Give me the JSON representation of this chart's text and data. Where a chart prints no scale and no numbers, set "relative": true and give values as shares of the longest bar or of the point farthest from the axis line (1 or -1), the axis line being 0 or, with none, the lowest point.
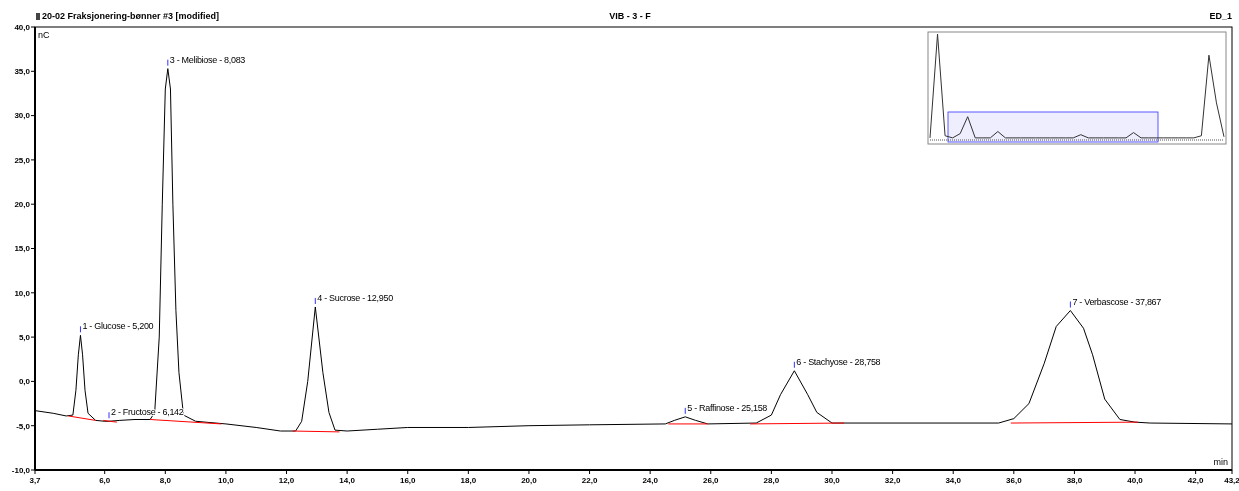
{
  "chart_data": [
    {
      "type": "line",
      "title": "20-02 Fraksjonering-bønner #3 [modified]",
      "subtitle": "VIB - 3 - F",
      "xlabel": "min",
      "ylabel": "nC",
      "annotations": [
        "ED_1",
        {
          "text": "1 - Glucose - 5,200",
          "x": 5.2,
          "y": 5.2
        },
        {
          "text": "2 - Fructose - 6,142",
          "x": 6.142,
          "y": -4.5
        },
        {
          "text": "3 - Melibiose - 8,083",
          "x": 8.083,
          "y": 35.3
        },
        {
          "text": "4 - Sucrose - 12,950",
          "x": 12.95,
          "y": 8.4
        },
        {
          "text": "5 - Raffinose - 25,158",
          "x": 25.158,
          "y": -4.0
        },
        {
          "text": "6 - Stachyose - 28,758",
          "x": 28.758,
          "y": 1.2
        },
        {
          "text": "7 - Verbascose - 37,867",
          "x": 37.867,
          "y": 8.0
        }
      ],
      "xlim": [
        3.7,
        43.2
      ],
      "ylim": [
        -10,
        40
      ],
      "xticks": [
        {
          "value": 3.7,
          "label": "3,7"
        },
        {
          "value": 6,
          "label": "6,0"
        },
        {
          "value": 8,
          "label": "8,0"
        },
        {
          "value": 10,
          "label": "10,0"
        },
        {
          "value": 12,
          "label": "12,0"
        },
        {
          "value": 14,
          "label": "14,0"
        },
        {
          "value": 16,
          "label": "16,0"
        },
        {
          "value": 18,
          "label": "18,0"
        },
        {
          "value": 20,
          "label": "20,0"
        },
        {
          "value": 22,
          "label": "22,0"
        },
        {
          "value": 24,
          "label": "24,0"
        },
        {
          "value": 26,
          "label": "26,0"
        },
        {
          "value": 28,
          "label": "28,0"
        },
        {
          "value": 30,
          "label": "30,0"
        },
        {
          "value": 32,
          "label": "32,0"
        },
        {
          "value": 34,
          "label": "34,0"
        },
        {
          "value": 36,
          "label": "36,0"
        },
        {
          "value": 38,
          "label": "38,0"
        },
        {
          "value": 40,
          "label": "40,0"
        },
        {
          "value": 42,
          "label": "42,0"
        },
        {
          "value": 43.2,
          "label": "43,2"
        }
      ],
      "yticks": [
        {
          "value": -10,
          "label": "-10,0"
        },
        {
          "value": -5,
          "label": "-5,0"
        },
        {
          "value": 0,
          "label": "0,0"
        },
        {
          "value": 5,
          "label": "5,0"
        },
        {
          "value": 10,
          "label": "10,0"
        },
        {
          "value": 15,
          "label": "15,0"
        },
        {
          "value": 20,
          "label": "20,0"
        },
        {
          "value": 25,
          "label": "25,0"
        },
        {
          "value": 30,
          "label": "30,0"
        },
        {
          "value": 35,
          "label": "35,0"
        },
        {
          "value": 40,
          "label": "40,0"
        }
      ],
      "series": [
        {
          "color": "#000000",
          "x": [
            3.7,
            4.3,
            4.73,
            4.95,
            5.05,
            5.13,
            5.2,
            5.27,
            5.35,
            5.45,
            5.7,
            6.0,
            6.142,
            6.5,
            7.0,
            7.5,
            7.65,
            7.8,
            7.9,
            8.0,
            8.083,
            8.17,
            8.25,
            8.35,
            8.45,
            8.6,
            9.0,
            10.0,
            11.0,
            11.8,
            12.3,
            12.5,
            12.7,
            12.95,
            13.2,
            13.4,
            13.6,
            14.0,
            15.0,
            16.0,
            18.0,
            20.0,
            22.0,
            24.5,
            24.8,
            25.158,
            25.5,
            25.9,
            27.5,
            28.0,
            28.3,
            28.758,
            29.2,
            29.5,
            30.0,
            35.5,
            36.0,
            36.5,
            37.0,
            37.4,
            37.867,
            38.3,
            38.6,
            39.0,
            39.5,
            40.0,
            40.5,
            43.2
          ],
          "values": [
            -3.3,
            -3.6,
            -3.9,
            -3.8,
            -1,
            3,
            5.2,
            3,
            -1,
            -3.6,
            -4.4,
            -4.5,
            -4.5,
            -4.4,
            -4.3,
            -4.3,
            -3.5,
            5,
            20,
            33,
            35.3,
            33,
            20,
            8,
            1,
            -3.8,
            -4.5,
            -4.8,
            -5.2,
            -5.6,
            -5.6,
            -4.5,
            0,
            8.4,
            1,
            -3.5,
            -5.5,
            -5.6,
            -5.4,
            -5.2,
            -5.2,
            -5.0,
            -4.9,
            -4.8,
            -4.4,
            -4.0,
            -4.4,
            -4.8,
            -4.7,
            -3.8,
            -1.5,
            1.2,
            -1.5,
            -3.5,
            -4.7,
            -4.7,
            -4.2,
            -2.5,
            2,
            6.2,
            8.0,
            6,
            3,
            -2,
            -4.3,
            -4.6,
            -4.7,
            -4.8
          ]
        },
        {
          "color": "#ff0000",
          "x": [
            4.8,
            5.7
          ],
          "values": [
            -3.9,
            -4.4
          ]
        },
        {
          "color": "#ff0000",
          "x": [
            5.95,
            6.4
          ],
          "values": [
            -4.4,
            -4.6
          ]
        },
        {
          "color": "#ff0000",
          "x": [
            7.5,
            9.85
          ],
          "values": [
            -4.3,
            -4.8
          ]
        },
        {
          "color": "#ff0000",
          "x": [
            12.2,
            13.75
          ],
          "values": [
            -5.6,
            -5.7
          ]
        },
        {
          "color": "#ff0000",
          "x": [
            24.6,
            25.9
          ],
          "values": [
            -4.8,
            -4.8
          ]
        },
        {
          "color": "#ff0000",
          "x": [
            27.3,
            30.4
          ],
          "values": [
            -4.8,
            -4.7
          ]
        },
        {
          "color": "#ff0000",
          "x": [
            35.9,
            40.1
          ],
          "values": [
            -4.7,
            -4.6
          ]
        }
      ]
    },
    {
      "type": "line",
      "relative": true,
      "categories": [
        null,
        null,
        null,
        null,
        null,
        null,
        null,
        null,
        null,
        null,
        null,
        null,
        null,
        null,
        null,
        null,
        null,
        null,
        null,
        null,
        null,
        null,
        null,
        null,
        null,
        null,
        null,
        null,
        null,
        null,
        null,
        null,
        null,
        null,
        null,
        null,
        null,
        null,
        null,
        null
      ],
      "series": [
        {
          "color": "#333333",
          "values": [
            0.02,
            1,
            0.04,
            0.02,
            0.06,
            0.22,
            0.02,
            0.02,
            0.02,
            0.08,
            0.02,
            0.02,
            0.02,
            0.02,
            0.02,
            0.02,
            0.02,
            0.02,
            0.02,
            0.02,
            0.05,
            0.02,
            0.02,
            0.02,
            0.02,
            0.02,
            0.02,
            0.07,
            0.02,
            0.02,
            0.02,
            0.02,
            0.02,
            0.02,
            0.02,
            0.02,
            0.04,
            0.8,
            0.35,
            0.03
          ]
        }
      ]
    }
  ]
}
